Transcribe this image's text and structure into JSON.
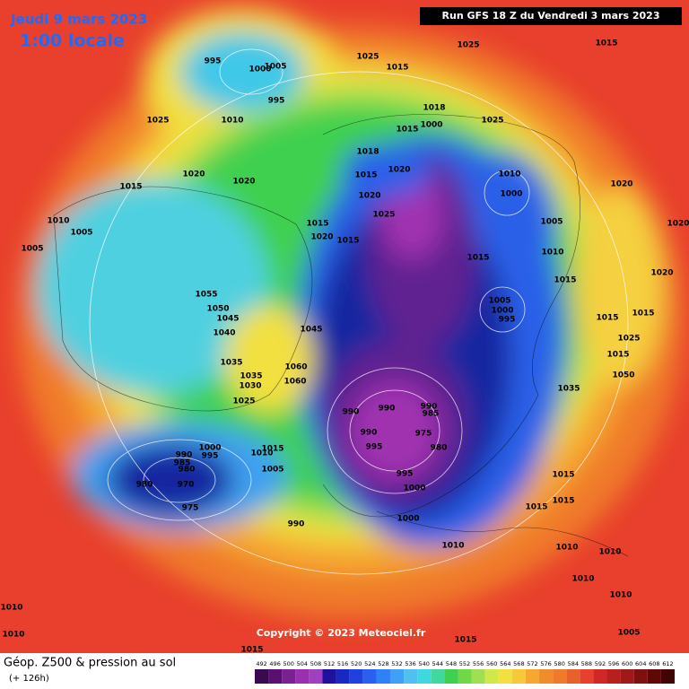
{
  "header": {
    "date": "Jeudi 9 mars 2023",
    "time": "1:00 locale",
    "run": "Run GFS 18 Z du Vendredi 3 mars 2023"
  },
  "copyright": "Copyright © 2023 Meteociel.fr",
  "footer": {
    "title": "Géop. Z500 & pression au sol",
    "lead": "(+ 126h)"
  },
  "legend": {
    "labels": [
      492,
      496,
      500,
      504,
      508,
      512,
      516,
      520,
      524,
      528,
      532,
      536,
      540,
      544,
      548,
      552,
      556,
      560,
      564,
      568,
      572,
      576,
      580,
      584,
      588,
      592,
      596,
      600,
      604,
      608,
      612
    ]
  },
  "isobars": [
    995,
    1000,
    1005,
    995,
    1025,
    1015,
    1025,
    1015,
    1025,
    1010,
    1020,
    1020,
    1015,
    1010,
    1005,
    1005,
    1018,
    1000,
    1015,
    1025,
    1018,
    1015,
    1020,
    1010,
    1000,
    1020,
    1025,
    1015,
    1020,
    1015,
    1020,
    1005,
    1015,
    1010,
    1015,
    1020,
    1005,
    1000,
    995,
    1015,
    1015,
    1025,
    1015,
    1050,
    1035,
    1055,
    1050,
    1045,
    1040,
    1045,
    1035,
    1035,
    1030,
    1060,
    1060,
    1025,
    990,
    990,
    990,
    985,
    990,
    975,
    980,
    995,
    995,
    1000,
    990,
    1000,
    995,
    985,
    980,
    1010,
    1015,
    1005,
    980,
    970,
    975,
    990,
    1000,
    1015,
    1015,
    1015,
    1010,
    1010,
    1010,
    1010,
    1010,
    1010,
    1010,
    1005,
    1015,
    1015,
    1020
  ]
}
